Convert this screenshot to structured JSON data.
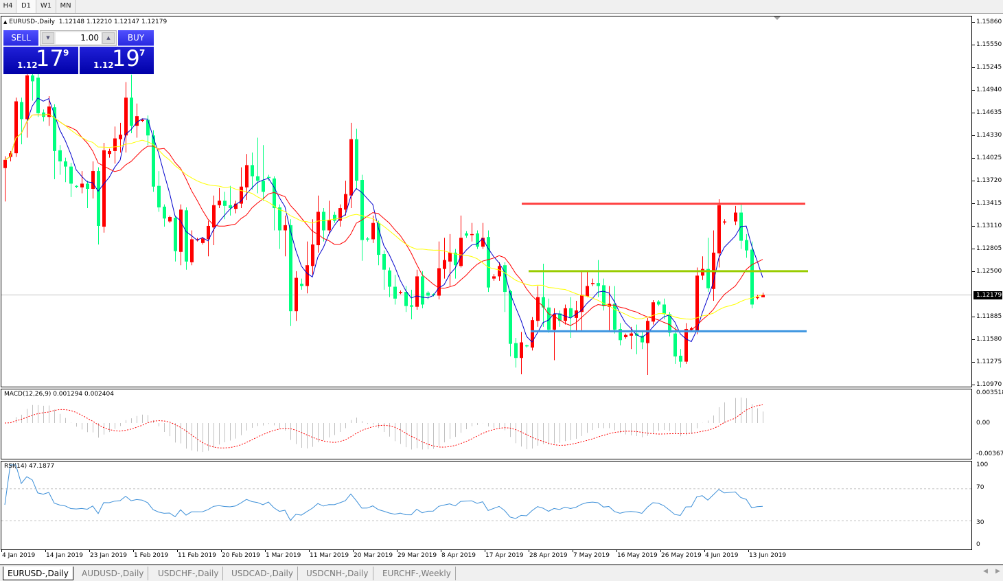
{
  "timeframes": [
    "H4",
    "D1",
    "W1",
    "MN"
  ],
  "active_timeframe": "D1",
  "chart_header": {
    "symbol": "EURUSD-,Daily",
    "ohlc": "1.12148 1.12210 1.12147 1.12179"
  },
  "trade_panel": {
    "sell_label": "SELL",
    "buy_label": "BUY",
    "lot": "1.00",
    "sell_price": {
      "prefix": "1.12",
      "big": "17",
      "sup": "9"
    },
    "buy_price": {
      "prefix": "1.12",
      "big": "19",
      "sup": "7"
    }
  },
  "price_axis": [
    "1.15860",
    "1.15550",
    "1.15245",
    "1.14940",
    "1.14635",
    "1.14330",
    "1.14025",
    "1.13720",
    "1.13415",
    "1.13110",
    "1.12805",
    "1.12500",
    "1.11885",
    "1.11580",
    "1.11275",
    "1.10970"
  ],
  "current_price": "1.12179",
  "macd": {
    "label": "MACD(12,26,9) 0.001294 0.002404",
    "axis": [
      "0.003518",
      "0.00",
      "-0.00367"
    ]
  },
  "rsi": {
    "label": "RSI(14) 47.1877",
    "axis": [
      "100",
      "70",
      "30",
      "0"
    ]
  },
  "dates": [
    "4 Jan 2019",
    "14 Jan 2019",
    "23 Jan 2019",
    "1 Feb 2019",
    "11 Feb 2019",
    "20 Feb 2019",
    "1 Mar 2019",
    "11 Mar 2019",
    "20 Mar 2019",
    "29 Mar 2019",
    "8 Apr 2019",
    "17 Apr 2019",
    "28 Apr 2019",
    "7 May 2019",
    "16 May 2019",
    "26 May 2019",
    "4 Jun 2019",
    "13 Jun 2019"
  ],
  "tabs": [
    "EURUSD-,Daily",
    "AUDUSD-,Daily",
    "USDCHF-,Daily",
    "USDCAD-,Daily",
    "USDCNH-,Daily",
    "EURCHF-,Weekly"
  ],
  "colors": {
    "bull": "#ff0000",
    "bear": "#00ff7f",
    "ma_fast": "#0000cc",
    "ma_mid": "#ff0000",
    "ma_slow": "#ffff00",
    "resistance": "#ff4040",
    "middle": "#99cc00",
    "support": "#3d95e0",
    "macd_hist": "#c0c0c0",
    "macd_signal": "#ff0000",
    "rsi": "#3c8fd8"
  },
  "chart_data": {
    "type": "candlestick",
    "ylim": [
      1.1097,
      1.1586
    ],
    "horizontal_levels": [
      {
        "price": 1.1341,
        "color": "resistance"
      },
      {
        "price": 1.125,
        "color": "middle"
      },
      {
        "price": 1.1169,
        "color": "support"
      }
    ],
    "candles_ohlc": [
      [
        1.1389,
        1.1405,
        1.1344,
        1.14
      ],
      [
        1.1404,
        1.1412,
        1.1398,
        1.1409
      ],
      [
        1.1409,
        1.1484,
        1.1404,
        1.1479
      ],
      [
        1.1478,
        1.1484,
        1.1421,
        1.1455
      ],
      [
        1.1455,
        1.152,
        1.143,
        1.1514
      ],
      [
        1.1514,
        1.152,
        1.148,
        1.1506
      ],
      [
        1.1511,
        1.152,
        1.1458,
        1.1463
      ],
      [
        1.1464,
        1.1468,
        1.1452,
        1.1458
      ],
      [
        1.1458,
        1.1486,
        1.1446,
        1.1472
      ],
      [
        1.1471,
        1.1475,
        1.1374,
        1.1412
      ],
      [
        1.1413,
        1.142,
        1.138,
        1.1398
      ],
      [
        1.1398,
        1.1403,
        1.137,
        1.1391
      ],
      [
        1.1391,
        1.1396,
        1.135,
        1.1368
      ],
      [
        1.1365,
        1.1366,
        1.1362,
        1.1364
      ],
      [
        1.1363,
        1.1385,
        1.1355,
        1.1368
      ],
      [
        1.1368,
        1.1372,
        1.1335,
        1.1361
      ],
      [
        1.1361,
        1.1398,
        1.1348,
        1.1385
      ],
      [
        1.1385,
        1.139,
        1.1286,
        1.1311
      ],
      [
        1.131,
        1.1423,
        1.1302,
        1.1413
      ],
      [
        1.1408,
        1.1415,
        1.1403,
        1.1412
      ],
      [
        1.1412,
        1.1445,
        1.1395,
        1.1429
      ],
      [
        1.1428,
        1.145,
        1.141,
        1.1434
      ],
      [
        1.1433,
        1.1505,
        1.141,
        1.1484
      ],
      [
        1.1484,
        1.1515,
        1.1436,
        1.1446
      ],
      [
        1.1446,
        1.1476,
        1.143,
        1.1459
      ],
      [
        1.1453,
        1.1456,
        1.1451,
        1.1454
      ],
      [
        1.1454,
        1.146,
        1.142,
        1.1433
      ],
      [
        1.1433,
        1.144,
        1.1357,
        1.1364
      ],
      [
        1.1365,
        1.1385,
        1.133,
        1.1336
      ],
      [
        1.1337,
        1.134,
        1.131,
        1.1321
      ],
      [
        1.1317,
        1.1325,
        1.1315,
        1.1323
      ],
      [
        1.1322,
        1.1325,
        1.1263,
        1.1277
      ],
      [
        1.1276,
        1.134,
        1.1258,
        1.1333
      ],
      [
        1.1332,
        1.1336,
        1.1252,
        1.1263
      ],
      [
        1.1262,
        1.1305,
        1.1258,
        1.1293
      ],
      [
        1.1292,
        1.1295,
        1.129,
        1.1293
      ],
      [
        1.1288,
        1.1296,
        1.1286,
        1.1294
      ],
      [
        1.1293,
        1.1318,
        1.127,
        1.1311
      ],
      [
        1.1309,
        1.1352,
        1.1285,
        1.1339
      ],
      [
        1.1339,
        1.1362,
        1.1335,
        1.1345
      ],
      [
        1.1345,
        1.1357,
        1.132,
        1.1338
      ],
      [
        1.1339,
        1.1365,
        1.1325,
        1.1335
      ],
      [
        1.1334,
        1.1345,
        1.1328,
        1.1341
      ],
      [
        1.1341,
        1.139,
        1.1335,
        1.1364
      ],
      [
        1.1363,
        1.1408,
        1.1346,
        1.1393
      ],
      [
        1.1393,
        1.141,
        1.136,
        1.1378
      ],
      [
        1.1378,
        1.143,
        1.1355,
        1.1372
      ],
      [
        1.1372,
        1.142,
        1.1345,
        1.1357
      ],
      [
        1.1377,
        1.138,
        1.1372,
        1.1376
      ],
      [
        1.1375,
        1.1378,
        1.1305,
        1.1335
      ],
      [
        1.1336,
        1.134,
        1.128,
        1.1305
      ],
      [
        1.1305,
        1.1325,
        1.127,
        1.1312
      ],
      [
        1.1312,
        1.132,
        1.1176,
        1.1196
      ],
      [
        1.1196,
        1.125,
        1.1183,
        1.1241
      ],
      [
        1.1233,
        1.124,
        1.1225,
        1.123
      ],
      [
        1.123,
        1.129,
        1.122,
        1.1258
      ],
      [
        1.1257,
        1.132,
        1.1245,
        1.1286
      ],
      [
        1.1285,
        1.1352,
        1.1275,
        1.133
      ],
      [
        1.133,
        1.1335,
        1.129,
        1.1305
      ],
      [
        1.1305,
        1.1345,
        1.13,
        1.1319
      ],
      [
        1.1326,
        1.133,
        1.1315,
        1.1318
      ],
      [
        1.1318,
        1.134,
        1.131,
        1.1335
      ],
      [
        1.1333,
        1.1372,
        1.1325,
        1.1354
      ],
      [
        1.1352,
        1.145,
        1.1335,
        1.1428
      ],
      [
        1.1428,
        1.1442,
        1.136,
        1.1372
      ],
      [
        1.1373,
        1.138,
        1.1264,
        1.1292
      ],
      [
        1.1294,
        1.1296,
        1.129,
        1.1293
      ],
      [
        1.1293,
        1.1325,
        1.1288,
        1.1315
      ],
      [
        1.1315,
        1.1318,
        1.1258,
        1.1272
      ],
      [
        1.1273,
        1.1278,
        1.1225,
        1.1252
      ],
      [
        1.1251,
        1.1255,
        1.1215,
        1.1229
      ],
      [
        1.1229,
        1.1245,
        1.1205,
        1.1213
      ],
      [
        1.1221,
        1.1224,
        1.1219,
        1.1222
      ],
      [
        1.1222,
        1.123,
        1.1195,
        1.1203
      ],
      [
        1.1204,
        1.1225,
        1.1185,
        1.1202
      ],
      [
        1.1202,
        1.1252,
        1.1198,
        1.1243
      ],
      [
        1.1243,
        1.125,
        1.12,
        1.1205
      ],
      [
        1.1221,
        1.1223,
        1.1212,
        1.1217
      ],
      [
        1.1219,
        1.122,
        1.1216,
        1.1218
      ],
      [
        1.1217,
        1.129,
        1.1212,
        1.1254
      ],
      [
        1.1253,
        1.1295,
        1.124,
        1.1265
      ],
      [
        1.1263,
        1.13,
        1.123,
        1.1275
      ],
      [
        1.1275,
        1.128,
        1.124,
        1.1258
      ],
      [
        1.1257,
        1.1325,
        1.1255,
        1.1295
      ],
      [
        1.1301,
        1.1304,
        1.1295,
        1.1298
      ],
      [
        1.1299,
        1.1315,
        1.129,
        1.13
      ],
      [
        1.1301,
        1.1305,
        1.128,
        1.1283
      ],
      [
        1.1283,
        1.1315,
        1.128,
        1.1295
      ],
      [
        1.1296,
        1.1305,
        1.1222,
        1.1228
      ],
      [
        1.124,
        1.1246,
        1.1237,
        1.1243
      ],
      [
        1.1243,
        1.1262,
        1.1237,
        1.1257
      ],
      [
        1.1258,
        1.1262,
        1.1195,
        1.1222
      ],
      [
        1.1223,
        1.1225,
        1.1135,
        1.1152
      ],
      [
        1.1153,
        1.116,
        1.112,
        1.1133
      ],
      [
        1.1133,
        1.1168,
        1.1111,
        1.1154
      ],
      [
        1.115,
        1.1151,
        1.1147,
        1.1149
      ],
      [
        1.1147,
        1.1188,
        1.1143,
        1.1184
      ],
      [
        1.1183,
        1.123,
        1.1175,
        1.1215
      ],
      [
        1.1215,
        1.126,
        1.1175,
        1.1201
      ],
      [
        1.1201,
        1.1213,
        1.1167,
        1.1171
      ],
      [
        1.1171,
        1.12,
        1.113,
        1.1192
      ],
      [
        1.1193,
        1.1197,
        1.1175,
        1.1183
      ],
      [
        1.1183,
        1.1205,
        1.1178,
        1.12
      ],
      [
        1.12,
        1.1215,
        1.116,
        1.1188
      ],
      [
        1.1187,
        1.121,
        1.117,
        1.1197
      ],
      [
        1.1195,
        1.125,
        1.117,
        1.1218
      ],
      [
        1.1216,
        1.125,
        1.1215,
        1.123
      ],
      [
        1.1233,
        1.124,
        1.123,
        1.1234
      ],
      [
        1.1234,
        1.1265,
        1.1215,
        1.123
      ],
      [
        1.1231,
        1.124,
        1.1197,
        1.1203
      ],
      [
        1.1202,
        1.123,
        1.117,
        1.1206
      ],
      [
        1.1206,
        1.123,
        1.1166,
        1.1171
      ],
      [
        1.1172,
        1.118,
        1.115,
        1.1157
      ],
      [
        1.1161,
        1.1166,
        1.1159,
        1.1164
      ],
      [
        1.1163,
        1.1175,
        1.1145,
        1.1166
      ],
      [
        1.1166,
        1.1178,
        1.1138,
        1.1163
      ],
      [
        1.1163,
        1.117,
        1.1145,
        1.1154
      ],
      [
        1.1153,
        1.1187,
        1.111,
        1.1183
      ],
      [
        1.1182,
        1.1211,
        1.1178,
        1.1208
      ],
      [
        1.1209,
        1.1211,
        1.1203,
        1.1205
      ],
      [
        1.1205,
        1.1213,
        1.1185,
        1.1192
      ],
      [
        1.1192,
        1.1195,
        1.1162,
        1.1167
      ],
      [
        1.1166,
        1.1175,
        1.1125,
        1.1135
      ],
      [
        1.1136,
        1.1145,
        1.112,
        1.1128
      ],
      [
        1.1128,
        1.118,
        1.1125,
        1.1172
      ],
      [
        1.1171,
        1.1175,
        1.1169,
        1.1173
      ],
      [
        1.117,
        1.1255,
        1.1165,
        1.1244
      ],
      [
        1.1244,
        1.127,
        1.1238,
        1.1253
      ],
      [
        1.1253,
        1.1295,
        1.1222,
        1.1227
      ],
      [
        1.1226,
        1.1305,
        1.121,
        1.1275
      ],
      [
        1.1274,
        1.1347,
        1.1255,
        1.1339
      ],
      [
        1.1316,
        1.132,
        1.1313,
        1.1317
      ],
      null,
      [
        1.1317,
        1.1338,
        1.1312,
        1.1329
      ],
      [
        1.1329,
        1.1342,
        1.128,
        1.1291
      ],
      [
        1.1292,
        1.13,
        1.1268,
        1.1278
      ],
      [
        1.1279,
        1.129,
        1.12,
        1.1205
      ],
      [
        1.1214,
        1.1218,
        1.1212,
        1.1215
      ],
      [
        1.12148,
        1.1221,
        1.12147,
        1.12179
      ]
    ]
  }
}
